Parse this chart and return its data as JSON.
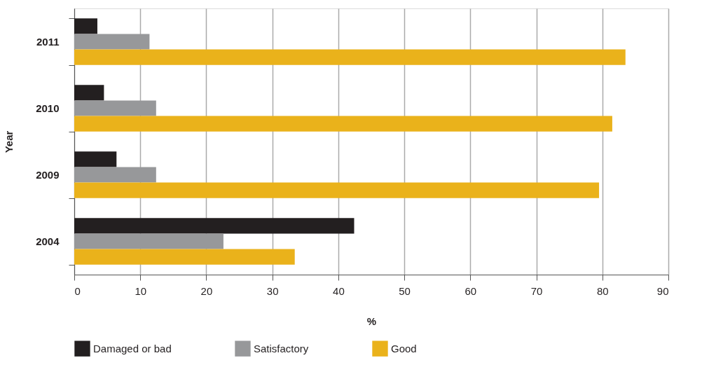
{
  "chart_data": {
    "type": "bar",
    "orientation": "horizontal",
    "xlabel": "%",
    "ylabel": "Year",
    "categories": [
      "2011",
      "2010",
      "2009",
      "2004"
    ],
    "series": [
      {
        "name": "Damaged or bad",
        "color": "#231f20",
        "values": [
          3.5,
          4.5,
          6.4,
          42.4
        ]
      },
      {
        "name": "Satisfactory",
        "color": "#97989a",
        "values": [
          11.4,
          12.4,
          12.4,
          22.6
        ]
      },
      {
        "name": "Good",
        "color": "#eab21b",
        "values": [
          83.5,
          81.5,
          79.5,
          33.4
        ]
      }
    ],
    "xlim": [
      0,
      90
    ],
    "xticks": [
      0,
      10,
      20,
      30,
      40,
      50,
      60,
      70,
      80,
      90
    ],
    "grid": "x",
    "legend": "bottom"
  }
}
